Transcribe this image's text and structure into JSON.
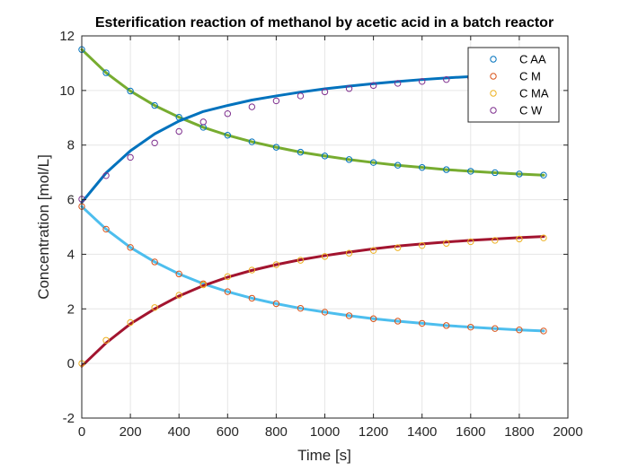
{
  "chart_data": {
    "type": "line",
    "title": "Esterification reaction of methanol by acetic acid in a batch reactor",
    "xlabel": "Time [s]",
    "ylabel": "Concentration [mol/L]",
    "xlim": [
      0,
      2000
    ],
    "ylim": [
      -2,
      12
    ],
    "xticks": [
      0,
      200,
      400,
      600,
      800,
      1000,
      1200,
      1400,
      1600,
      1800,
      2000
    ],
    "yticks": [
      -2,
      0,
      2,
      4,
      6,
      8,
      10,
      12
    ],
    "grid": true,
    "legend_position": "top-right",
    "x": [
      0,
      100,
      200,
      300,
      400,
      500,
      600,
      700,
      800,
      900,
      1000,
      1100,
      1200,
      1300,
      1400,
      1500,
      1600,
      1700,
      1800,
      1900
    ],
    "series": [
      {
        "name": "C AA",
        "marker_color": "#0072BD",
        "fit_color": "#77AC30",
        "values": [
          11.5,
          10.65,
          9.98,
          9.45,
          9.02,
          8.65,
          8.36,
          8.12,
          7.92,
          7.74,
          7.6,
          7.47,
          7.36,
          7.26,
          7.18,
          7.1,
          7.04,
          6.99,
          6.94,
          6.9
        ],
        "fit": [
          11.5,
          10.65,
          9.98,
          9.45,
          9.02,
          8.65,
          8.36,
          8.12,
          7.92,
          7.74,
          7.6,
          7.47,
          7.36,
          7.26,
          7.18,
          7.1,
          7.04,
          6.99,
          6.94,
          6.9
        ]
      },
      {
        "name": "C M",
        "marker_color": "#D95319",
        "fit_color": "#4DBEEE",
        "values": [
          5.75,
          4.92,
          4.25,
          3.72,
          3.28,
          2.92,
          2.63,
          2.39,
          2.19,
          2.02,
          1.88,
          1.75,
          1.64,
          1.55,
          1.47,
          1.39,
          1.33,
          1.28,
          1.23,
          1.19
        ],
        "fit": [
          5.75,
          4.92,
          4.25,
          3.72,
          3.28,
          2.92,
          2.63,
          2.39,
          2.19,
          2.02,
          1.88,
          1.75,
          1.64,
          1.55,
          1.47,
          1.39,
          1.33,
          1.28,
          1.23,
          1.19
        ]
      },
      {
        "name": "C MA",
        "marker_color": "#EDB120",
        "fit_color": "#A2142F",
        "values": [
          0.0,
          0.85,
          1.5,
          2.05,
          2.5,
          2.88,
          3.18,
          3.42,
          3.62,
          3.78,
          3.92,
          4.04,
          4.14,
          4.24,
          4.32,
          4.4,
          4.46,
          4.51,
          4.56,
          4.6
        ],
        "fit": [
          -0.1,
          0.75,
          1.45,
          2.0,
          2.47,
          2.85,
          3.16,
          3.41,
          3.62,
          3.8,
          3.95,
          4.08,
          4.2,
          4.3,
          4.38,
          4.45,
          4.51,
          4.56,
          4.61,
          4.65
        ]
      },
      {
        "name": "C W",
        "marker_color": "#7E2F8E",
        "fit_color": "#0072BD",
        "values": [
          6.02,
          6.88,
          7.55,
          8.08,
          8.5,
          8.85,
          9.15,
          9.4,
          9.62,
          9.8,
          9.95,
          10.07,
          10.18,
          10.26,
          10.33,
          10.4,
          10.46,
          10.5,
          10.55,
          10.58
        ],
        "fit": [
          5.9,
          6.98,
          7.79,
          8.41,
          8.88,
          9.23,
          9.45,
          9.65,
          9.8,
          9.94,
          10.06,
          10.16,
          10.25,
          10.33,
          10.4,
          10.46,
          10.51,
          10.55,
          10.58,
          10.6
        ]
      }
    ]
  }
}
